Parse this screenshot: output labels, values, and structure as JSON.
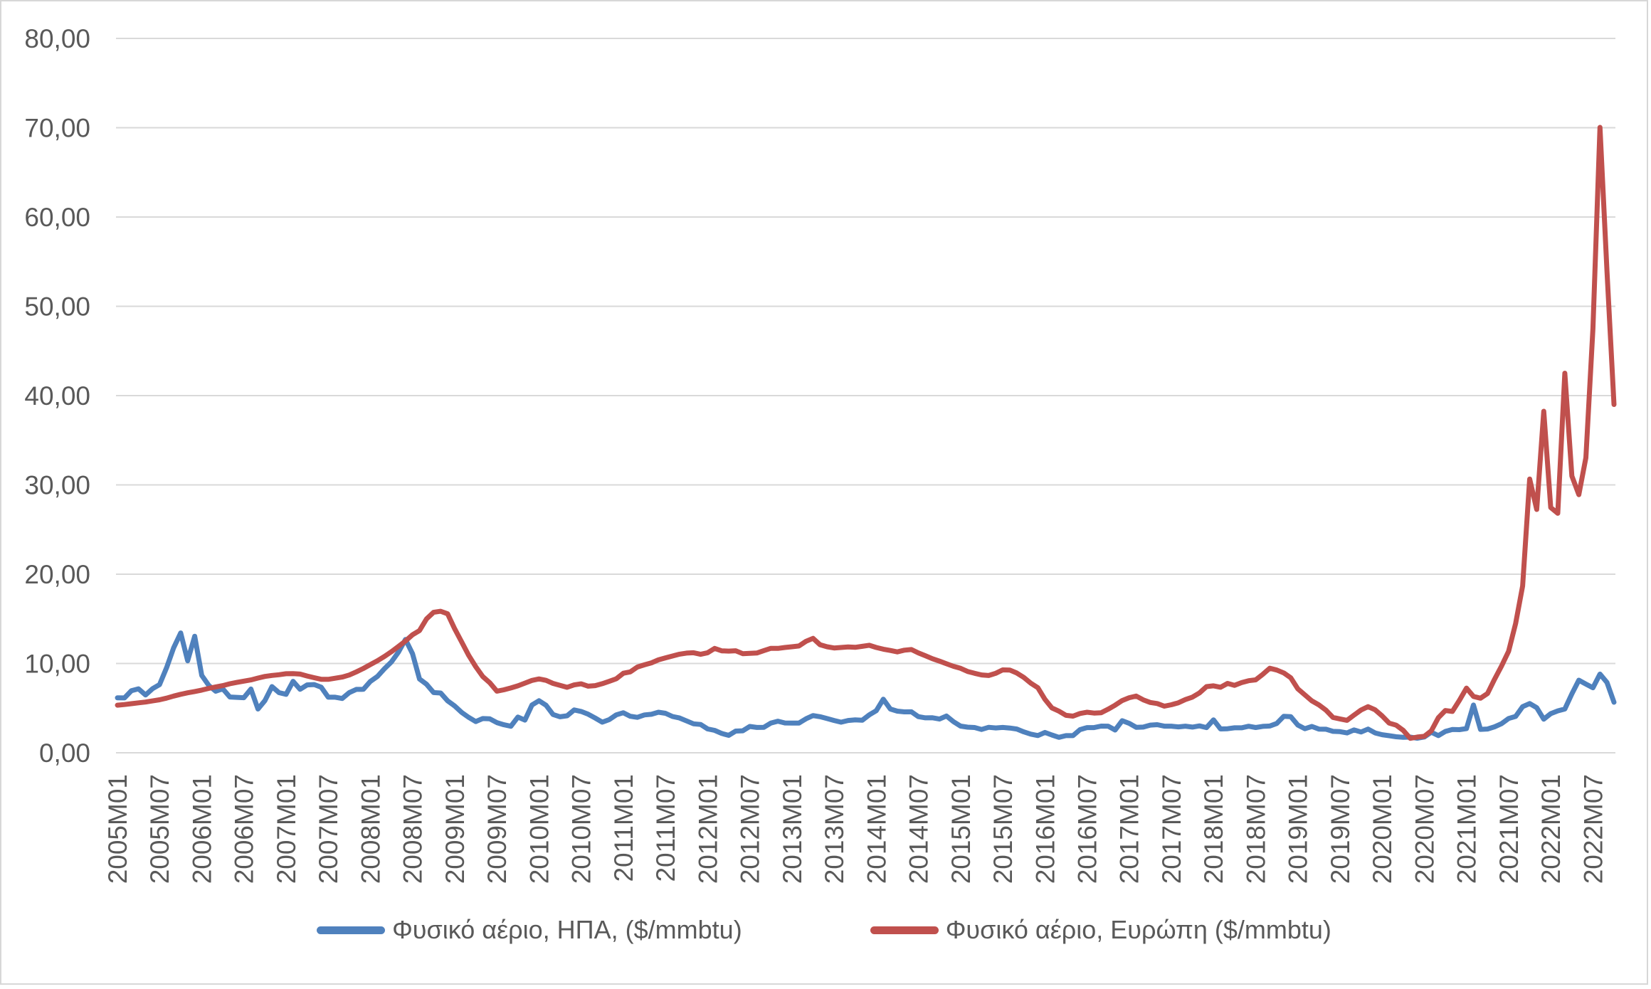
{
  "chart_data": {
    "type": "line",
    "title": "",
    "xlabel": "",
    "ylabel": "",
    "ylim": [
      0,
      80
    ],
    "y_tick_labels": [
      "0,00",
      "10,00",
      "20,00",
      "30,00",
      "40,00",
      "50,00",
      "60,00",
      "70,00",
      "80,00"
    ],
    "x_tick_step": 6,
    "x_tick_labels": [
      "2005M01",
      "2005M07",
      "2006M01",
      "2006M07",
      "2007M01",
      "2007M07",
      "2008M01",
      "2008M07",
      "2009M01",
      "2009M07",
      "2010M01",
      "2010M07",
      "2011M01",
      "2011M07",
      "2012M01",
      "2012M07",
      "2013M01",
      "2013M07",
      "2014M01",
      "2014M07",
      "2015M01",
      "2015M07",
      "2016M01",
      "2016M07",
      "2017M01",
      "2017M07",
      "2018M01",
      "2018M07",
      "2019M01",
      "2019M07",
      "2020M01",
      "2020M07",
      "2021M01",
      "2021M07",
      "2022M01",
      "2022M07"
    ],
    "grid": "horizontal",
    "gridline_color": "#d9d9d9",
    "axis_text_color": "#595959",
    "legend_position": "bottom",
    "x_start": "2005M01",
    "x_end": "2022M10",
    "x_frequency": "monthly",
    "series": [
      {
        "name": "Φυσικό αέριο, ΗΠΑ, ($/mmbtu)",
        "color": "#4F81BD",
        "values": [
          6.15,
          6.14,
          6.96,
          7.16,
          6.47,
          7.18,
          7.63,
          9.53,
          11.75,
          13.42,
          10.3,
          13.05,
          8.66,
          7.54,
          6.89,
          7.16,
          6.25,
          6.21,
          6.17,
          7.14,
          4.9,
          5.85,
          7.41,
          6.73,
          6.55,
          8.0,
          7.11,
          7.6,
          7.64,
          7.35,
          6.22,
          6.22,
          6.08,
          6.74,
          7.1,
          7.11,
          7.99,
          8.54,
          9.41,
          10.18,
          11.27,
          12.69,
          11.09,
          8.26,
          7.67,
          6.74,
          6.69,
          5.82,
          5.24,
          4.52,
          3.96,
          3.5,
          3.83,
          3.8,
          3.38,
          3.14,
          2.97,
          4.0,
          3.66,
          5.35,
          5.83,
          5.32,
          4.29,
          4.03,
          4.14,
          4.8,
          4.63,
          4.32,
          3.89,
          3.43,
          3.71,
          4.25,
          4.49,
          4.09,
          3.97,
          4.24,
          4.31,
          4.54,
          4.42,
          4.06,
          3.9,
          3.57,
          3.24,
          3.17,
          2.67,
          2.51,
          2.17,
          1.95,
          2.43,
          2.46,
          2.95,
          2.84,
          2.85,
          3.32,
          3.54,
          3.34,
          3.33,
          3.33,
          3.81,
          4.17,
          4.04,
          3.83,
          3.62,
          3.43,
          3.62,
          3.68,
          3.64,
          4.24,
          4.71,
          6.0,
          4.9,
          4.66,
          4.58,
          4.59,
          4.05,
          3.91,
          3.92,
          3.78,
          4.12,
          3.48,
          2.99,
          2.87,
          2.83,
          2.61,
          2.85,
          2.78,
          2.84,
          2.77,
          2.66,
          2.34,
          2.09,
          1.93,
          2.28,
          1.99,
          1.73,
          1.92,
          1.92,
          2.59,
          2.82,
          2.82,
          2.99,
          2.98,
          2.55,
          3.59,
          3.3,
          2.85,
          2.88,
          3.1,
          3.15,
          2.98,
          2.98,
          2.9,
          2.98,
          2.88,
          3.01,
          2.82,
          3.69,
          2.67,
          2.69,
          2.8,
          2.8,
          2.97,
          2.83,
          2.96,
          3.0,
          3.28,
          4.09,
          4.04,
          3.11,
          2.69,
          2.95,
          2.65,
          2.64,
          2.4,
          2.37,
          2.22,
          2.56,
          2.33,
          2.65,
          2.22,
          2.02,
          1.91,
          1.79,
          1.74,
          1.75,
          1.63,
          1.77,
          2.3,
          1.92,
          2.39,
          2.61,
          2.59,
          2.71,
          5.35,
          2.62,
          2.66,
          2.91,
          3.26,
          3.84,
          4.07,
          5.16,
          5.51,
          5.05,
          3.76,
          4.38,
          4.69,
          4.9,
          6.6,
          8.13,
          7.7,
          7.28,
          8.81,
          7.88,
          5.66
        ]
      },
      {
        "name": "Φυσικό αέριο, Ευρώπη ($/mmbtu)",
        "color": "#C0504D",
        "values": [
          5.33,
          5.4,
          5.5,
          5.59,
          5.68,
          5.81,
          5.94,
          6.12,
          6.35,
          6.55,
          6.72,
          6.86,
          7.02,
          7.21,
          7.38,
          7.52,
          7.73,
          7.88,
          8.02,
          8.16,
          8.37,
          8.55,
          8.66,
          8.74,
          8.85,
          8.87,
          8.81,
          8.6,
          8.41,
          8.23,
          8.22,
          8.35,
          8.48,
          8.71,
          9.06,
          9.44,
          9.87,
          10.3,
          10.79,
          11.32,
          11.91,
          12.52,
          13.22,
          13.69,
          15.0,
          15.73,
          15.85,
          15.56,
          13.89,
          12.4,
          10.9,
          9.64,
          8.53,
          7.84,
          6.9,
          7.05,
          7.26,
          7.5,
          7.8,
          8.1,
          8.27,
          8.11,
          7.77,
          7.55,
          7.33,
          7.6,
          7.72,
          7.46,
          7.52,
          7.74,
          8.0,
          8.29,
          8.91,
          9.06,
          9.6,
          9.85,
          10.07,
          10.41,
          10.63,
          10.84,
          11.04,
          11.16,
          11.2,
          11.03,
          11.2,
          11.69,
          11.42,
          11.39,
          11.43,
          11.1,
          11.13,
          11.17,
          11.44,
          11.7,
          11.69,
          11.79,
          11.87,
          11.96,
          12.49,
          12.81,
          12.1,
          11.87,
          11.74,
          11.79,
          11.85,
          11.81,
          11.92,
          12.04,
          11.79,
          11.6,
          11.46,
          11.3,
          11.49,
          11.56,
          11.19,
          10.87,
          10.53,
          10.26,
          9.97,
          9.68,
          9.46,
          9.11,
          8.9,
          8.72,
          8.65,
          8.9,
          9.28,
          9.27,
          8.93,
          8.44,
          7.79,
          7.28,
          5.99,
          5.03,
          4.66,
          4.19,
          4.1,
          4.4,
          4.54,
          4.45,
          4.48,
          4.88,
          5.33,
          5.85,
          6.17,
          6.35,
          5.93,
          5.63,
          5.51,
          5.22,
          5.38,
          5.6,
          5.96,
          6.23,
          6.7,
          7.41,
          7.5,
          7.34,
          7.77,
          7.55,
          7.86,
          8.07,
          8.17,
          8.77,
          9.47,
          9.27,
          8.94,
          8.4,
          7.16,
          6.49,
          5.81,
          5.36,
          4.77,
          3.96,
          3.79,
          3.63,
          4.22,
          4.79,
          5.16,
          4.81,
          4.13,
          3.32,
          3.09,
          2.51,
          1.62,
          1.76,
          1.84,
          2.46,
          3.93,
          4.73,
          4.63,
          5.87,
          7.24,
          6.31,
          6.11,
          6.64,
          8.24,
          9.72,
          11.36,
          14.49,
          18.68,
          30.66,
          27.25,
          38.25,
          27.47,
          26.82,
          42.51,
          31.0,
          28.91,
          33.04,
          47.5,
          70.04,
          54.0,
          39.0
        ]
      }
    ]
  },
  "legend": {
    "items": [
      {
        "label": "Φυσικό αέριο, ΗΠΑ, ($/mmbtu)",
        "color": "#4F81BD"
      },
      {
        "label": "Φυσικό αέριο, Ευρώπη ($/mmbtu)",
        "color": "#C0504D"
      }
    ]
  }
}
